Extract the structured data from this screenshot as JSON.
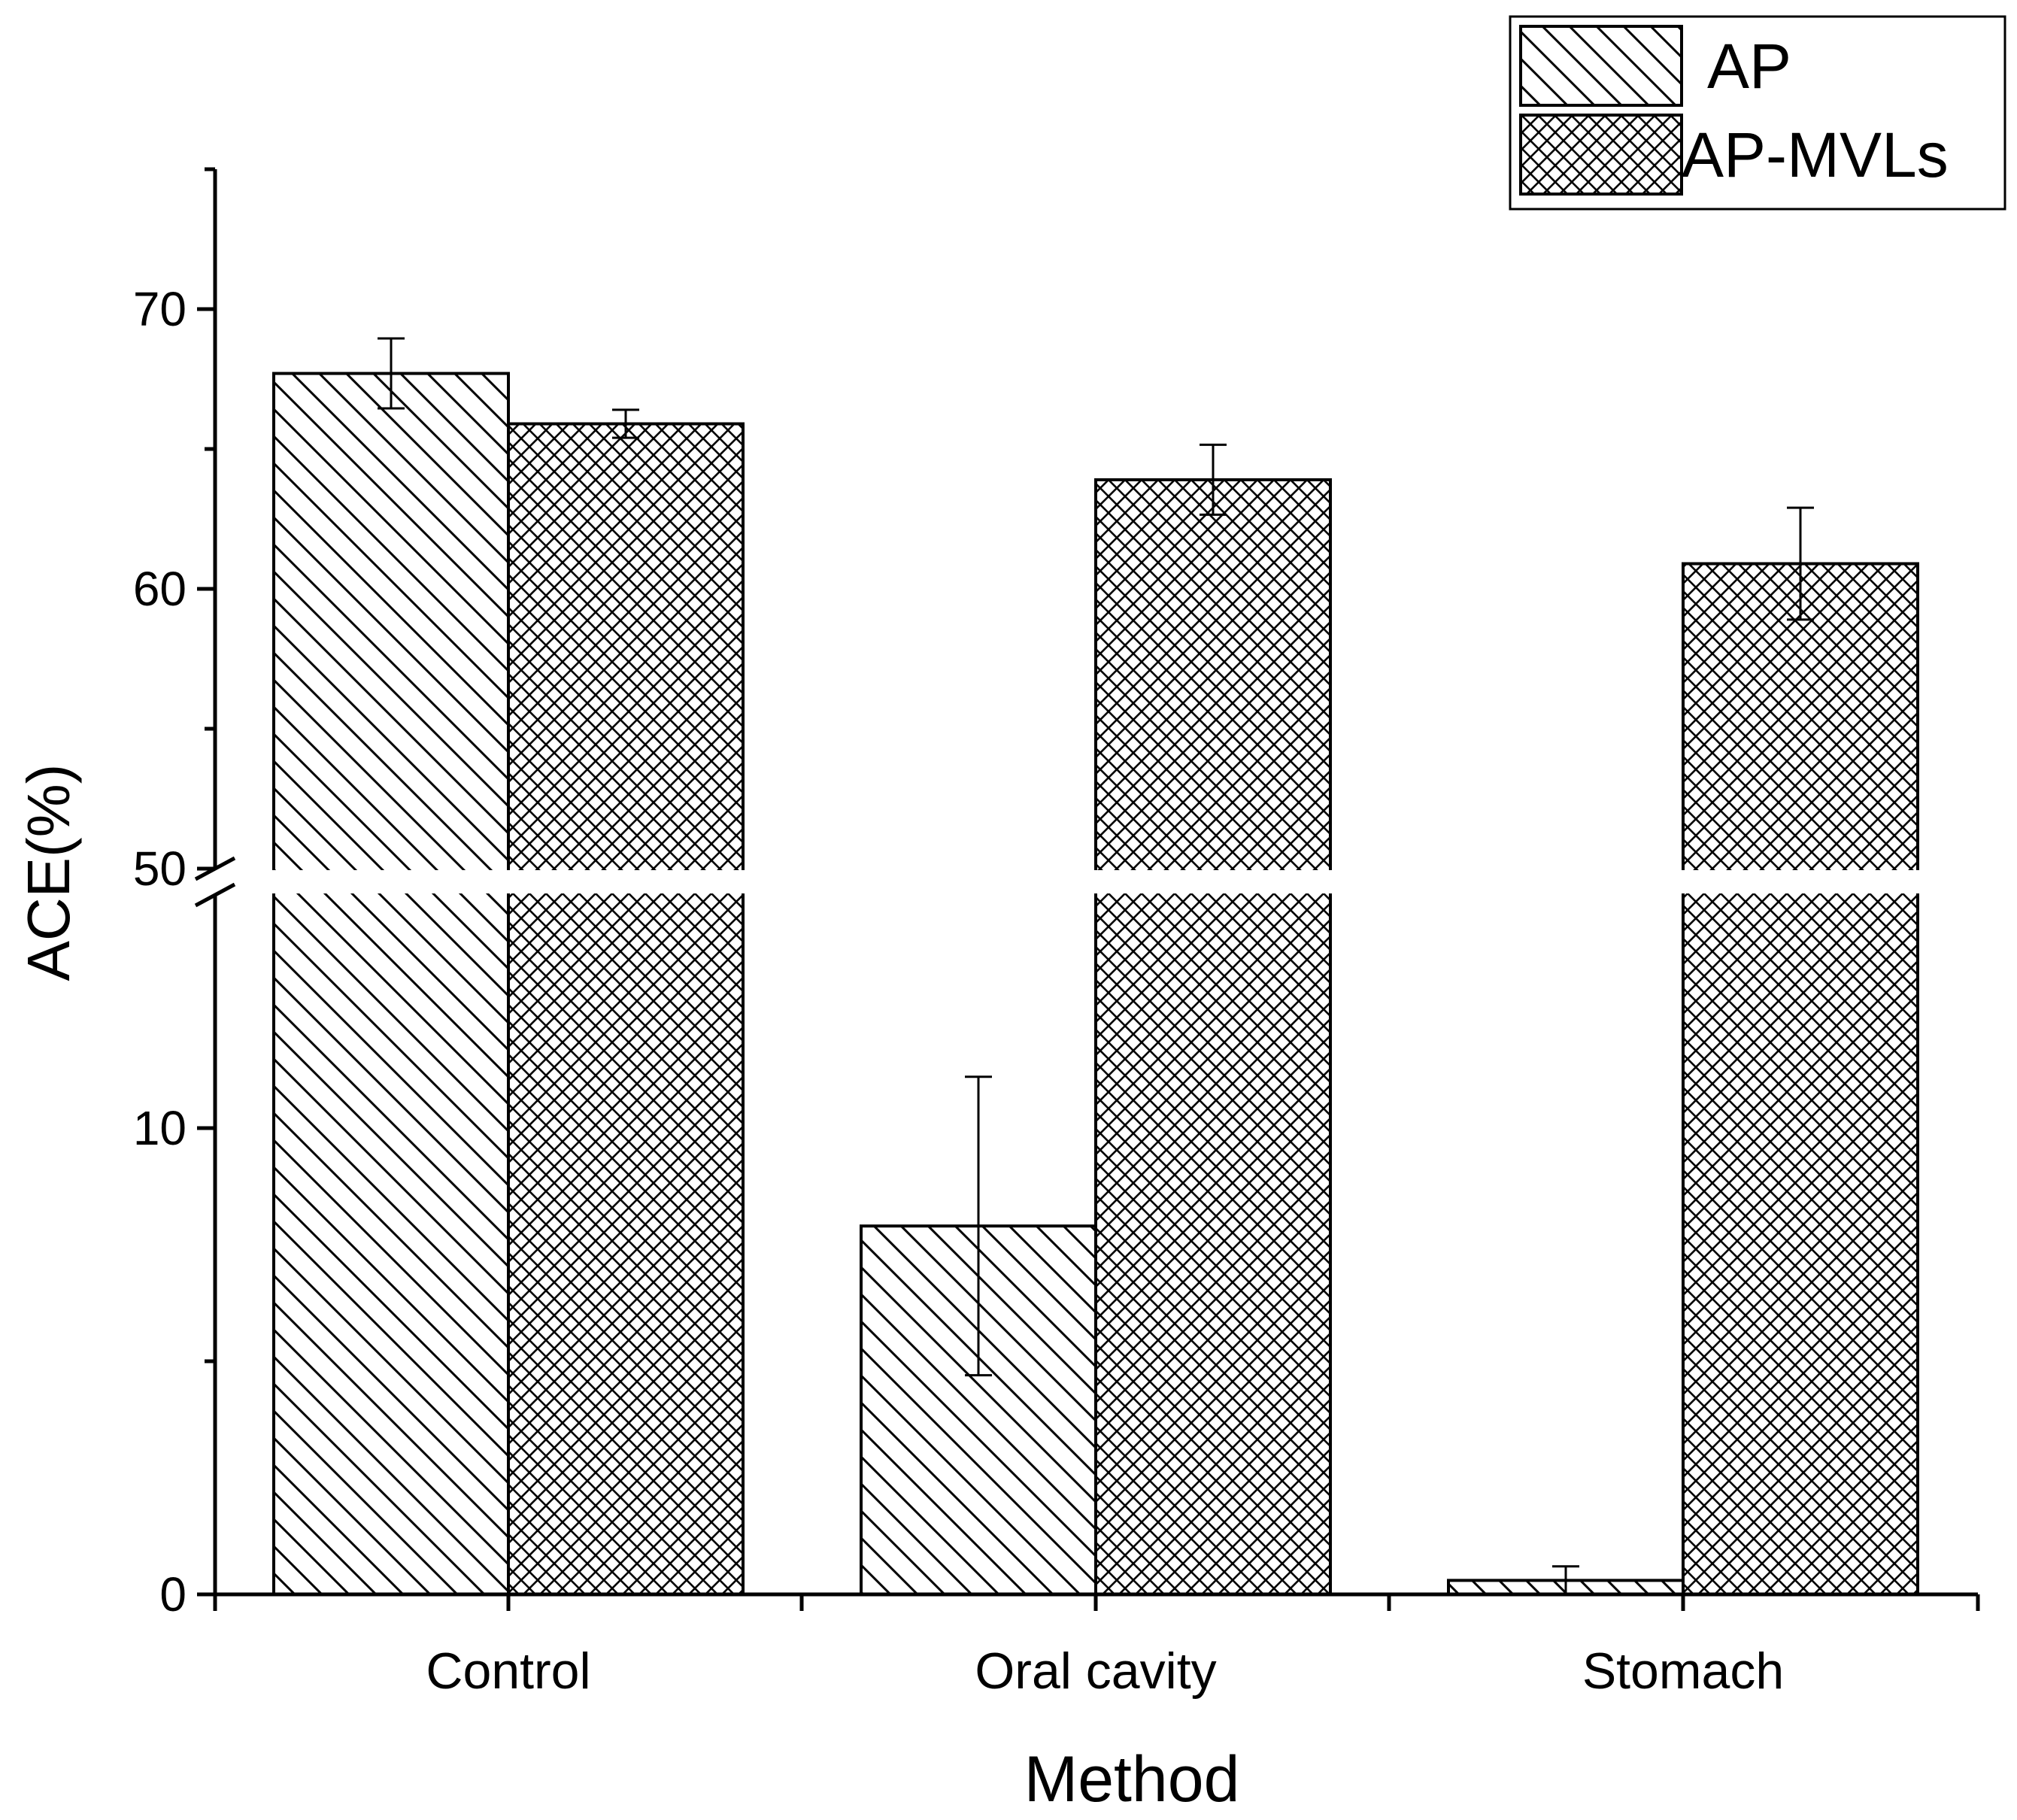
{
  "chart_data": {
    "type": "bar",
    "xlabel": "Method",
    "ylabel": "ACE(%)",
    "categories": [
      "Control",
      "Oral cavity",
      "Stomach"
    ],
    "series": [
      {
        "name": "AP",
        "pattern": "diagonal-hatch",
        "values": [
          67.7,
          7.9,
          0.3
        ],
        "errors": [
          1.25,
          3.2,
          0.3
        ]
      },
      {
        "name": "AP-MVLs",
        "pattern": "cross-hatch",
        "values": [
          65.9,
          63.9,
          60.9
        ],
        "errors": [
          0.5,
          1.25,
          2.0
        ]
      }
    ],
    "y_axis": {
      "broken": true,
      "lower_range": [
        0,
        15
      ],
      "upper_range": [
        50,
        75
      ],
      "lower_ticks": [
        0,
        10
      ],
      "upper_ticks": [
        50,
        60,
        70
      ]
    },
    "grid": false,
    "legend_position": "top-right",
    "colors": {
      "stroke": "#000000",
      "background": "#ffffff"
    }
  }
}
